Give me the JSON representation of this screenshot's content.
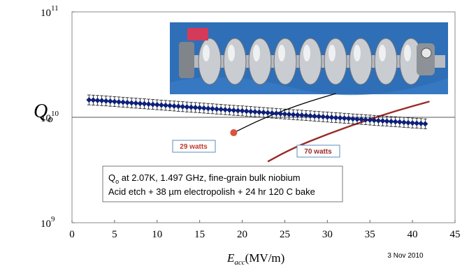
{
  "chart_data": {
    "type": "scatter",
    "title": "",
    "xlabel": {
      "main": "E",
      "sub": "acc",
      "unit": "(MV/m)"
    },
    "ylabel": {
      "main": "Q",
      "sub": "o"
    },
    "xlim": [
      0,
      45
    ],
    "ylim_log10": [
      9,
      11
    ],
    "y_scale": "log",
    "x_ticks": [
      "0",
      "5",
      "10",
      "15",
      "20",
      "25",
      "30",
      "35",
      "40",
      "45"
    ],
    "x_tick_values": [
      0,
      5,
      10,
      15,
      20,
      25,
      30,
      35,
      40,
      45
    ],
    "y_ticks": [
      {
        "value": 1000000000.0,
        "base": "10",
        "exp": "9"
      },
      {
        "value": 10000000000.0,
        "base": "10",
        "exp": "10"
      },
      {
        "value": 100000000000.0,
        "base": "10",
        "exp": "11"
      }
    ],
    "reference_line_y": 10000000000.0,
    "measurement": {
      "x": [
        2.0,
        2.5,
        3.0,
        3.5,
        4.0,
        4.5,
        5.0,
        5.5,
        6.0,
        6.5,
        7.0,
        7.5,
        8.0,
        8.5,
        9.0,
        9.5,
        10.0,
        10.5,
        11.0,
        11.5,
        12.0,
        12.5,
        13.0,
        13.5,
        14.0,
        14.5,
        15.0,
        15.5,
        16.0,
        16.5,
        17.0,
        17.5,
        18.0,
        18.5,
        19.0,
        19.5,
        20.0,
        20.5,
        21.0,
        21.5,
        22.0,
        22.5,
        23.0,
        23.5,
        24.0,
        24.5,
        25.0,
        25.5,
        26.0,
        26.5,
        27.0,
        27.5,
        28.0,
        28.5,
        29.0,
        29.5,
        30.0,
        30.5,
        31.0,
        31.5,
        32.0,
        32.5,
        33.0,
        33.5,
        34.0,
        34.5,
        35.0,
        35.5,
        36.0,
        36.5,
        37.0,
        37.5,
        38.0,
        38.5,
        39.0,
        39.5,
        40.0,
        40.5,
        41.0,
        41.5
      ],
      "y_log10": [
        10.165,
        10.163,
        10.16,
        10.158,
        10.155,
        10.152,
        10.149,
        10.146,
        10.143,
        10.14,
        10.137,
        10.134,
        10.131,
        10.128,
        10.125,
        10.122,
        10.119,
        10.116,
        10.113,
        10.11,
        10.107,
        10.104,
        10.101,
        10.098,
        10.095,
        10.093,
        10.09,
        10.087,
        10.084,
        10.081,
        10.078,
        10.075,
        10.072,
        10.069,
        10.066,
        10.063,
        10.061,
        10.058,
        10.055,
        10.052,
        10.049,
        10.046,
        10.043,
        10.04,
        10.037,
        10.034,
        10.031,
        10.028,
        10.025,
        10.022,
        10.02,
        10.017,
        10.014,
        10.011,
        10.008,
        10.005,
        10.002,
        9.999,
        9.996,
        9.994,
        9.991,
        9.988,
        9.985,
        9.982,
        9.98,
        9.977,
        9.974,
        9.971,
        9.968,
        9.966,
        9.963,
        9.96,
        9.958,
        9.955,
        9.952,
        9.949,
        9.946,
        9.944,
        9.941,
        9.938
      ],
      "error_log10": 0.047,
      "marker_color": "#0d1f7a"
    },
    "power_curves": [
      {
        "label": "29 watts",
        "x": [
          19.0,
          22.0,
          25.0,
          28.0,
          31.0
        ],
        "y_log10": [
          9.854,
          9.973,
          10.07,
          10.154,
          10.225
        ],
        "color": "#000000",
        "label_color": "#c0392b"
      },
      {
        "label": "70 watts",
        "x": [
          23.0,
          26.0,
          30.0,
          34.0,
          38.0,
          42.0
        ],
        "y_log10": [
          9.58,
          9.71,
          9.84,
          9.955,
          10.06,
          10.15
        ],
        "color": "#9b2a25",
        "label_color": "#9b2a25"
      }
    ],
    "highlight_point": {
      "x": 19.0,
      "y_log10": 9.854,
      "color": "#d9533f"
    },
    "annotation": {
      "line1_pre": "Q",
      "line1_sub": "o",
      "line1_post": " at 2.07K,  1.497 GHz, fine-grain bulk niobium",
      "line2": "Acid etch + 38 µm electropolish + 24 hr 120 C bake"
    },
    "date_note": "3 Nov 2010",
    "inset_photo": {
      "subject": "nine-cell-niobium-cavity",
      "background_color": "#2e6fb8"
    }
  }
}
